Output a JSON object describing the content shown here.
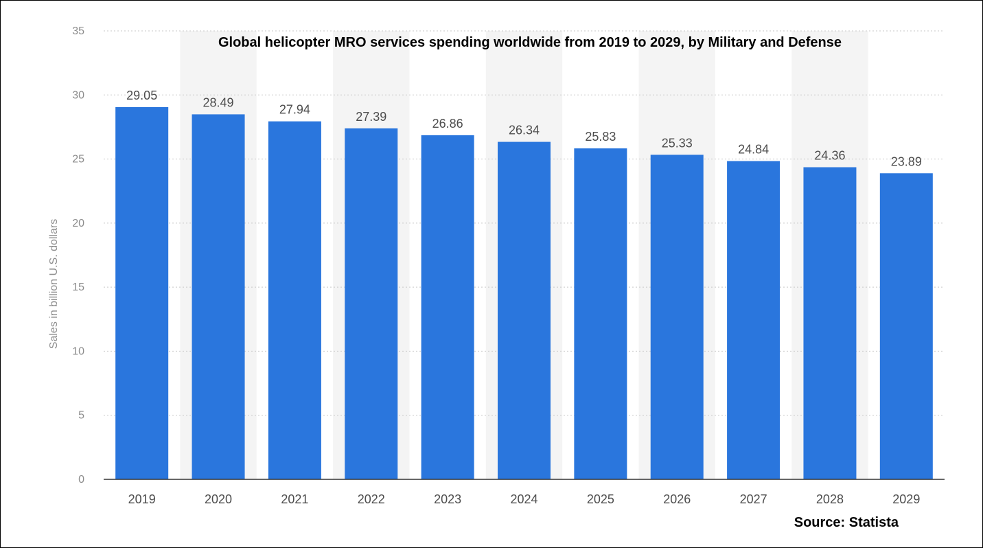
{
  "chart_data": {
    "type": "bar",
    "title": "Global helicopter MRO services spending worldwide from 2019 to 2029, by Military and Defense",
    "ylabel": "Sales in billion U.S. dollars",
    "xlabel": "",
    "categories": [
      "2019",
      "2020",
      "2021",
      "2022",
      "2023",
      "2024",
      "2025",
      "2026",
      "2027",
      "2028",
      "2029"
    ],
    "values": [
      29.05,
      28.49,
      27.94,
      27.39,
      26.86,
      26.34,
      25.83,
      25.33,
      24.84,
      24.36,
      23.89
    ],
    "value_labels": [
      "29.05",
      "28.49",
      "27.94",
      "27.39",
      "26.86",
      "26.34",
      "25.83",
      "25.33",
      "24.84",
      "24.36",
      "23.89"
    ],
    "ylim": [
      0,
      35
    ],
    "yticks": [
      "0",
      "5",
      "10",
      "15",
      "20",
      "25",
      "30",
      "35"
    ],
    "grid": "horizontal-dotted",
    "colors": {
      "bar": "#2a76dd",
      "alt_band": "#f4f4f4",
      "grid": "#c8c8c8",
      "axis": "#333333"
    }
  },
  "source": "Source: Statista"
}
